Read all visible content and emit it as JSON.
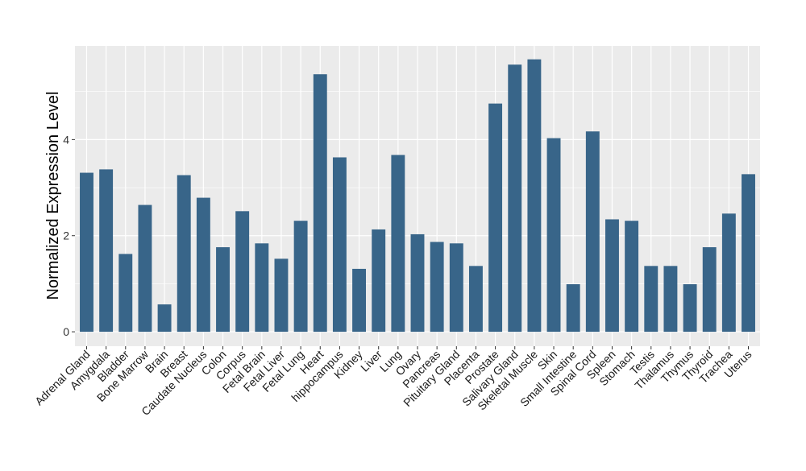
{
  "chart_data": {
    "type": "bar",
    "title": "",
    "xlabel": "",
    "ylabel": "Normalized Expression Level",
    "ylim": [
      -0.3,
      5.95
    ],
    "yticks": [
      0,
      2,
      4
    ],
    "grid": true,
    "bar_color": "#386589",
    "panel_color": "#EBEBEB",
    "categories": [
      "Adrenal Gland",
      "Amygdala",
      "Bladder",
      "Bone Marrow",
      "Brain",
      "Breast",
      "Caudate Nucleus",
      "Colon",
      "Corpus",
      "Fetal Brain",
      "Fetal Liver",
      "Fetal Lung",
      "Heart",
      "hippocampus",
      "Kidney",
      "Liver",
      "Lung",
      "Ovary",
      "Pancreas",
      "Pituitary Gland",
      "Placenta",
      "Prostate",
      "Salivary Gland",
      "Skeletal Muscle",
      "Skin",
      "Small Intestine",
      "Spinal Cord",
      "Spleen",
      "Stomach",
      "Testis",
      "Thalamus",
      "Thymus",
      "Thyroid",
      "Trachea",
      "Uterus"
    ],
    "values": [
      3.31,
      3.38,
      1.62,
      2.64,
      0.57,
      3.26,
      2.79,
      1.76,
      2.51,
      1.84,
      1.52,
      2.31,
      5.36,
      3.63,
      1.31,
      2.13,
      3.68,
      2.03,
      1.87,
      1.84,
      1.37,
      4.75,
      5.56,
      5.67,
      4.03,
      0.99,
      4.17,
      2.34,
      2.31,
      1.37,
      1.37,
      0.99,
      1.76,
      2.46,
      3.28
    ]
  }
}
